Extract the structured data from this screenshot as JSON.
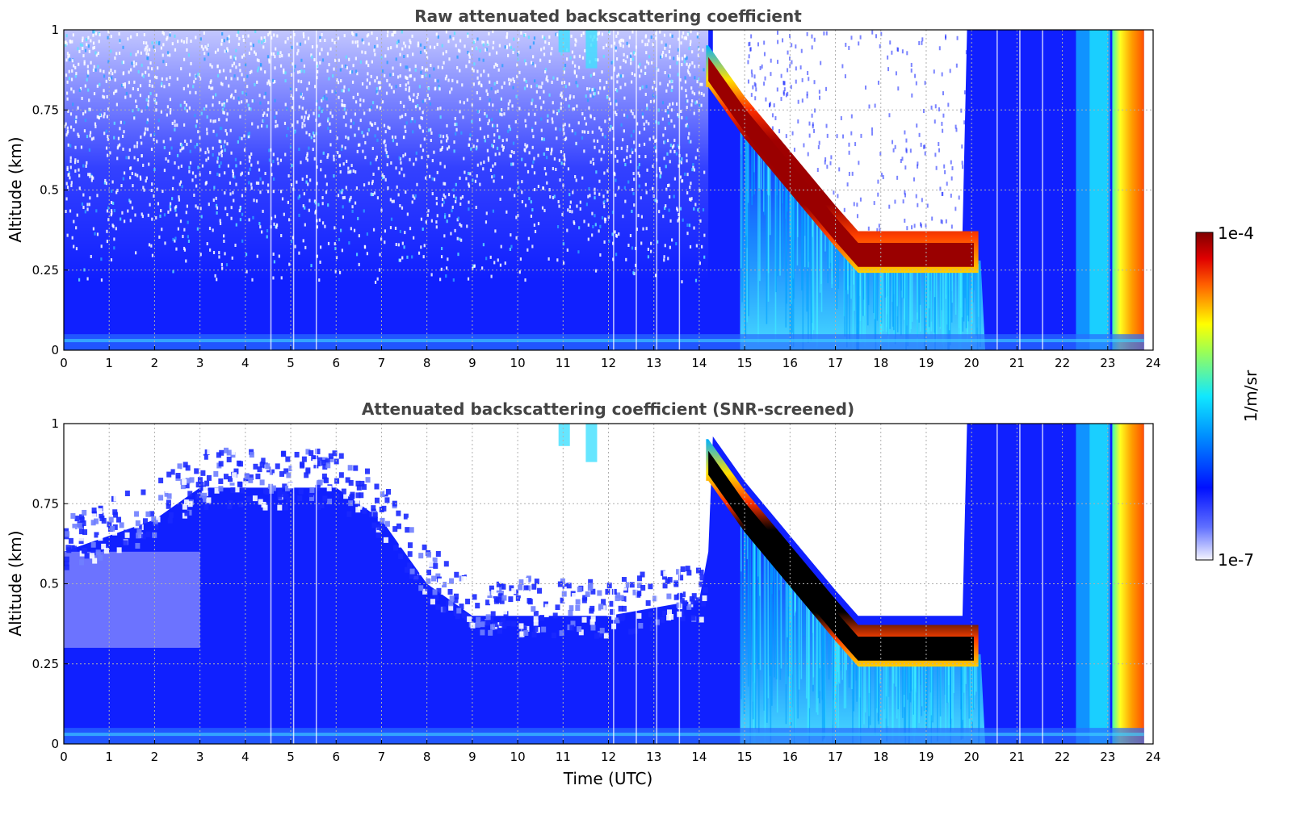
{
  "colors": {
    "low": "#ffffff",
    "blue": "#1020ff",
    "cyan": "#20c8ff",
    "yellow": "#f0ff20",
    "red": "#ff2000",
    "darkred": "#9a0000",
    "saturated": "#000000",
    "title": "#444444"
  },
  "colorbar": {
    "label": "1/m/sr",
    "max_label": "1e-4",
    "min_label": "1e-7",
    "min": 1e-07,
    "max": 0.0001,
    "scale": "log"
  },
  "chart_data": [
    {
      "type": "heatmap",
      "title": "Raw attenuated backscattering coefficient",
      "xlabel": "",
      "ylabel": "Altitude (km)",
      "xlim": [
        0,
        24
      ],
      "ylim": [
        0,
        1
      ],
      "xticks": [
        "0",
        "1",
        "2",
        "3",
        "4",
        "5",
        "6",
        "7",
        "8",
        "9",
        "10",
        "11",
        "12",
        "13",
        "14",
        "15",
        "16",
        "17",
        "18",
        "19",
        "20",
        "21",
        "22",
        "23",
        "24"
      ],
      "yticks": [
        "0",
        "0.25",
        "0.5",
        "0.75",
        "1"
      ],
      "grid": true,
      "cloud_layer": {
        "time_utc": [
          14.2,
          15.0,
          16.0,
          17.0,
          17.5,
          18.0,
          19.0,
          20.0
        ],
        "altitude_km": [
          0.88,
          0.72,
          0.55,
          0.38,
          0.3,
          0.3,
          0.3,
          0.3
        ]
      },
      "surface_band_altitude_km": [
        0.0,
        0.05
      ],
      "intense_column_time_utc": [
        23.1,
        23.8
      ]
    },
    {
      "type": "heatmap",
      "title": "Attenuated backscattering coefficient (SNR-screened)",
      "xlabel": "Time (UTC)",
      "ylabel": "Altitude (km)",
      "xlim": [
        0,
        24
      ],
      "ylim": [
        0,
        1
      ],
      "xticks": [
        "0",
        "1",
        "2",
        "3",
        "4",
        "5",
        "6",
        "7",
        "8",
        "9",
        "10",
        "11",
        "12",
        "13",
        "14",
        "15",
        "16",
        "17",
        "18",
        "19",
        "20",
        "21",
        "22",
        "23",
        "24"
      ],
      "yticks": [
        "0",
        "0.25",
        "0.5",
        "0.75",
        "1"
      ],
      "grid": true,
      "cloud_layer": {
        "time_utc": [
          14.2,
          15.0,
          16.0,
          17.0,
          17.5,
          18.0,
          19.0,
          20.0
        ],
        "altitude_km": [
          0.88,
          0.72,
          0.55,
          0.38,
          0.3,
          0.3,
          0.3,
          0.3
        ]
      },
      "screened_top_altitude_km": {
        "time_utc": [
          0,
          2,
          3,
          6,
          7,
          8,
          9,
          12,
          14,
          14.2
        ],
        "altitude_km": [
          0.6,
          0.7,
          0.8,
          0.8,
          0.7,
          0.5,
          0.4,
          0.4,
          0.45,
          0.6
        ]
      },
      "surface_band_altitude_km": [
        0.0,
        0.05
      ],
      "intense_column_time_utc": [
        23.1,
        23.8
      ]
    }
  ]
}
